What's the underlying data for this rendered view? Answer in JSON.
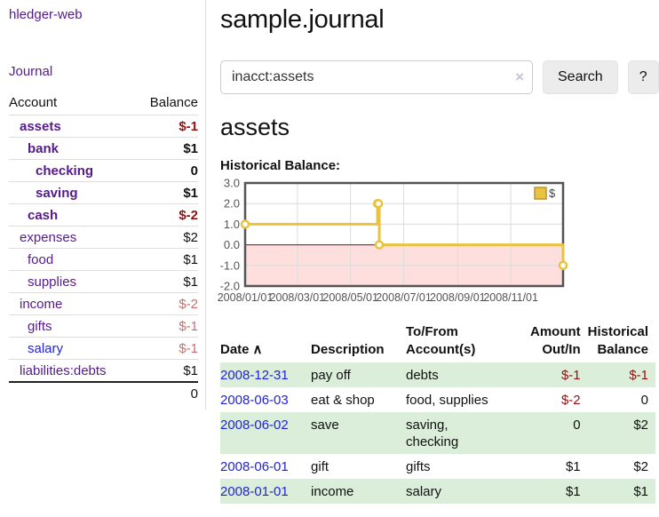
{
  "sidebar": {
    "brand": "hledger-web",
    "journal_link": "Journal",
    "accounts": {
      "header_account": "Account",
      "header_balance": "Balance",
      "rows": [
        {
          "name": "assets",
          "balance": "$-1",
          "level": 0,
          "bold": true,
          "link_color": "purple",
          "balance_tone": "neg"
        },
        {
          "name": "bank",
          "balance": "$1",
          "level": 1,
          "bold": true,
          "link_color": "purple",
          "balance_tone": ""
        },
        {
          "name": "checking",
          "balance": "0",
          "level": 2,
          "bold": true,
          "link_color": "purple",
          "balance_tone": ""
        },
        {
          "name": "saving",
          "balance": "$1",
          "level": 2,
          "bold": true,
          "link_color": "purple",
          "balance_tone": ""
        },
        {
          "name": "cash",
          "balance": "$-2",
          "level": 1,
          "bold": true,
          "link_color": "purple",
          "balance_tone": "neg"
        },
        {
          "name": "expenses",
          "balance": "$2",
          "level": 0,
          "bold": false,
          "link_color": "purple",
          "balance_tone": ""
        },
        {
          "name": "food",
          "balance": "$1",
          "level": 1,
          "bold": false,
          "link_color": "purple",
          "balance_tone": ""
        },
        {
          "name": "supplies",
          "balance": "$1",
          "level": 1,
          "bold": false,
          "link_color": "purple",
          "balance_tone": ""
        },
        {
          "name": "income",
          "balance": "$-2",
          "level": 0,
          "bold": false,
          "link_color": "purple",
          "balance_tone": "faded"
        },
        {
          "name": "gifts",
          "balance": "$-1",
          "level": 1,
          "bold": false,
          "link_color": "purple",
          "balance_tone": "faded"
        },
        {
          "name": "salary",
          "balance": "$-1",
          "level": 1,
          "bold": false,
          "link_color": "blue",
          "balance_tone": "faded"
        },
        {
          "name": "liabilities:debts",
          "balance": "$1",
          "level": 0,
          "bold": false,
          "link_color": "purple",
          "balance_tone": ""
        }
      ],
      "total": "0"
    }
  },
  "header": {
    "title": "sample.journal"
  },
  "search": {
    "value": "inacct:assets",
    "clear_icon": "×",
    "button_label": "Search",
    "help_label": "?"
  },
  "account": {
    "heading": "assets",
    "chart_label": "Historical Balance:"
  },
  "chart_data": {
    "type": "line",
    "title": "Historical Balance",
    "steps": true,
    "series": [
      {
        "name": "$",
        "color": "#e9c33f",
        "points": [
          [
            "2008-01-01",
            1
          ],
          [
            "2008-06-01",
            2
          ],
          [
            "2008-06-02",
            2
          ],
          [
            "2008-06-03",
            0
          ],
          [
            "2008-12-31",
            -1
          ]
        ]
      }
    ],
    "xlim": [
      "2008-01-01",
      "2008-12-31"
    ],
    "ylim": [
      -2,
      3
    ],
    "x_ticks": [
      {
        "date": "2008-01-01",
        "label": "2008/01/01"
      },
      {
        "date": "2008-03-01",
        "label": "2008/03/01"
      },
      {
        "date": "2008-05-01",
        "label": "2008/05/01"
      },
      {
        "date": "2008-07-01",
        "label": "2008/07/01"
      },
      {
        "date": "2008-09-01",
        "label": "2008/09/01"
      },
      {
        "date": "2008-11-01",
        "label": "2008/11/01"
      }
    ],
    "y_ticks": [
      {
        "value": 3,
        "label": "3.0"
      },
      {
        "value": 2,
        "label": "2.0"
      },
      {
        "value": 1,
        "label": "1.0"
      },
      {
        "value": 0,
        "label": "0.0"
      },
      {
        "value": -1,
        "label": "-1.0"
      },
      {
        "value": -2,
        "label": "-2.0"
      }
    ],
    "legend": {
      "position": "top-right",
      "label": "$"
    },
    "grid": true,
    "negative_region_color": "rgba(255,0,0,0.13)",
    "zero_line_color": "#aa0000",
    "border_color": "#545454",
    "gridline_color": "#dcdcdc"
  },
  "register": {
    "columns": [
      {
        "label": "Date",
        "sort_icon": "∧",
        "align": "left"
      },
      {
        "label": "Description",
        "align": "left"
      },
      {
        "label": "To/From Account(s)",
        "align": "left"
      },
      {
        "label": "Amount Out/In",
        "align": "right"
      },
      {
        "label": "Historical Balance",
        "align": "right"
      }
    ],
    "rows": [
      {
        "date": "2008-12-31",
        "description": "pay off",
        "accounts": "debts",
        "amount": "$-1",
        "amount_negative": true,
        "balance": "$-1",
        "balance_negative": true
      },
      {
        "date": "2008-06-03",
        "description": "eat & shop",
        "accounts": "food, supplies",
        "amount": "$-2",
        "amount_negative": true,
        "balance": "0",
        "balance_negative": false
      },
      {
        "date": "2008-06-02",
        "description": "save",
        "accounts": "saving, checking",
        "amount": "0",
        "amount_negative": false,
        "balance": "$2",
        "balance_negative": false
      },
      {
        "date": "2008-06-01",
        "description": "gift",
        "accounts": "gifts",
        "amount": "$1",
        "amount_negative": false,
        "balance": "$2",
        "balance_negative": false
      },
      {
        "date": "2008-01-01",
        "description": "income",
        "accounts": "salary",
        "amount": "$1",
        "amount_negative": false,
        "balance": "$1",
        "balance_negative": false
      }
    ]
  }
}
